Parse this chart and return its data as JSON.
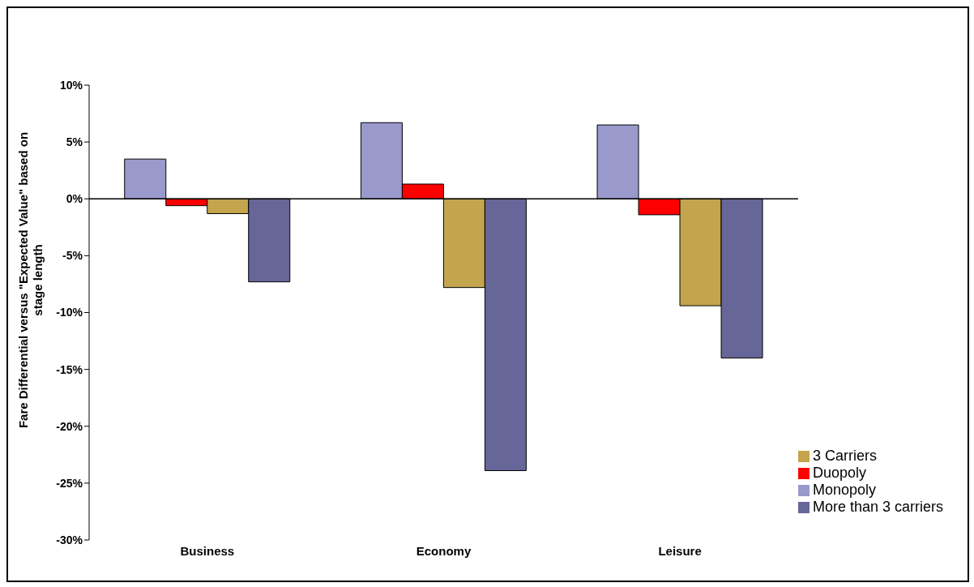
{
  "chart_data": {
    "type": "bar",
    "ylabel": "Fare Differential versus \"Expected Value\" based on stage length",
    "categories": [
      "Business",
      "Economy",
      "Leisure"
    ],
    "series": [
      {
        "name": "Monopoly",
        "color": "#9999cc",
        "values": [
          3.5,
          6.7,
          6.5
        ]
      },
      {
        "name": "Duopoly",
        "color": "#ff0000",
        "values": [
          -0.6,
          1.3,
          -1.4
        ]
      },
      {
        "name": "3 Carriers",
        "color": "#c4a54e",
        "values": [
          -1.3,
          -7.8,
          -9.4
        ]
      },
      {
        "name": "More than 3 carriers",
        "color": "#666699",
        "values": [
          -7.3,
          -23.9,
          -14.0
        ]
      }
    ],
    "ylim": [
      -30,
      10
    ],
    "yticks": [
      {
        "value": -30,
        "label": "-30%"
      },
      {
        "value": -25,
        "label": "-25%"
      },
      {
        "value": -20,
        "label": "-20%"
      },
      {
        "value": -15,
        "label": "-15%"
      },
      {
        "value": -10,
        "label": "-10%"
      },
      {
        "value": -5,
        "label": "-5%"
      },
      {
        "value": 0,
        "label": "0%"
      },
      {
        "value": 5,
        "label": "5%"
      },
      {
        "value": 10,
        "label": "10%"
      }
    ],
    "legend": "bottom right"
  }
}
